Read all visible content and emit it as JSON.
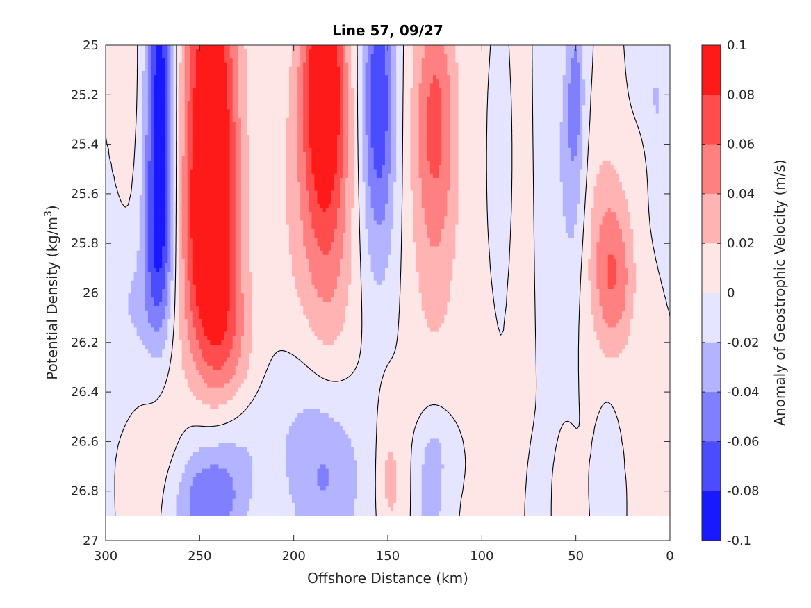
{
  "chart_data": {
    "type": "heatmap",
    "subtype": "filled-contour",
    "title": "Line 57, 09/27",
    "xlabel": "Offshore Distance (km)",
    "ylabel_main": "Potential Density (kg/m",
    "ylabel_sup": "3",
    "ylabel_close": ")",
    "colorbar_label": "Anomaly of Geostrophic Velocity (m/s)",
    "xlim": [
      300,
      0
    ],
    "ylim": [
      25,
      27
    ],
    "y_reversed": true,
    "x_ticks": [
      300,
      250,
      200,
      150,
      100,
      50,
      0
    ],
    "x_tick_labels": [
      "300",
      "250",
      "200",
      "150",
      "100",
      "50",
      "0"
    ],
    "y_ticks": [
      25,
      25.2,
      25.4,
      25.6,
      25.8,
      26,
      26.2,
      26.4,
      26.6,
      26.8,
      27
    ],
    "y_tick_labels": [
      "25",
      "25.2",
      "25.4",
      "25.6",
      "25.8",
      "26",
      "26.2",
      "26.4",
      "26.6",
      "26.8",
      "27"
    ],
    "colorbar_range": [
      -0.1,
      0.1
    ],
    "colorbar_ticks": [
      0.1,
      0.08,
      0.06,
      0.04,
      0.02,
      0,
      -0.02,
      -0.04,
      -0.06,
      -0.08,
      -0.1
    ],
    "colorbar_tick_labels": [
      "0.1",
      "0.08",
      "0.06",
      "0.04",
      "0.02",
      "0",
      "-0.02",
      "-0.04",
      "-0.06",
      "-0.08",
      "-0.1"
    ],
    "data_extent": {
      "x": [
        300,
        0
      ],
      "y": [
        25,
        26.9
      ]
    },
    "colormap": {
      "negative": "#0000ff",
      "zero": "#ffffff",
      "positive": "#ff0000"
    },
    "zero_contour_color": "#000000",
    "features": [
      {
        "x": 287,
        "y": 25.1,
        "sx": 3,
        "sy": 0.3,
        "v": 0.012
      },
      {
        "x": 271,
        "y": 25.2,
        "sx": 5,
        "sy": 0.5,
        "v": -0.092
      },
      {
        "x": 272,
        "y": 25.8,
        "sx": 6,
        "sy": 0.3,
        "v": -0.05
      },
      {
        "x": 285,
        "y": 26.05,
        "sx": 10,
        "sy": 0.16,
        "v": -0.02
      },
      {
        "x": 244,
        "y": 25.25,
        "sx": 10,
        "sy": 0.55,
        "v": 0.11
      },
      {
        "x": 244,
        "y": 25.9,
        "sx": 11,
        "sy": 0.35,
        "v": 0.065
      },
      {
        "x": 233,
        "y": 26.25,
        "sx": 10,
        "sy": 0.2,
        "v": 0.025
      },
      {
        "x": 268,
        "y": 26.55,
        "sx": 7,
        "sy": 0.25,
        "v": 0.014
      },
      {
        "x": 278,
        "y": 26.8,
        "sx": 5,
        "sy": 0.15,
        "v": 0.012
      },
      {
        "x": 184,
        "y": 25.1,
        "sx": 8,
        "sy": 0.35,
        "v": 0.1
      },
      {
        "x": 182,
        "y": 25.7,
        "sx": 10,
        "sy": 0.45,
        "v": 0.05
      },
      {
        "x": 200,
        "y": 25.6,
        "sx": 10,
        "sy": 0.5,
        "v": 0.015
      },
      {
        "x": 155,
        "y": 25.15,
        "sx": 6,
        "sy": 0.35,
        "v": -0.07
      },
      {
        "x": 155,
        "y": 25.65,
        "sx": 7,
        "sy": 0.35,
        "v": -0.025
      },
      {
        "x": 125,
        "y": 25.25,
        "sx": 8,
        "sy": 0.35,
        "v": 0.055
      },
      {
        "x": 125,
        "y": 25.8,
        "sx": 10,
        "sy": 0.45,
        "v": 0.025
      },
      {
        "x": 245,
        "y": 26.85,
        "sx": 13,
        "sy": 0.15,
        "v": -0.055
      },
      {
        "x": 235,
        "y": 26.6,
        "sx": 16,
        "sy": 0.18,
        "v": -0.022
      },
      {
        "x": 183,
        "y": 26.75,
        "sx": 14,
        "sy": 0.25,
        "v": -0.04
      },
      {
        "x": 195,
        "y": 26.45,
        "sx": 14,
        "sy": 0.25,
        "v": -0.012
      },
      {
        "x": 148,
        "y": 26.8,
        "sx": 5,
        "sy": 0.15,
        "v": 0.02
      },
      {
        "x": 150,
        "y": 26.6,
        "sx": 4,
        "sy": 0.2,
        "v": 0.012
      },
      {
        "x": 127,
        "y": 26.8,
        "sx": 5,
        "sy": 0.18,
        "v": -0.035
      },
      {
        "x": 122,
        "y": 26.62,
        "sx": 6,
        "sy": 0.12,
        "v": -0.012
      },
      {
        "x": 78,
        "y": 25.9,
        "sx": 3,
        "sy": 0.6,
        "v": 0.014
      },
      {
        "x": 90,
        "y": 25.5,
        "sx": 3,
        "sy": 0.2,
        "v": -0.012
      },
      {
        "x": 65,
        "y": 25.4,
        "sx": 4,
        "sy": 0.5,
        "v": -0.015
      },
      {
        "x": 52,
        "y": 25.45,
        "sx": 5,
        "sy": 0.35,
        "v": -0.035
      },
      {
        "x": 50,
        "y": 25.15,
        "sx": 3,
        "sy": 0.2,
        "v": -0.03
      },
      {
        "x": 30,
        "y": 25.95,
        "sx": 8,
        "sy": 0.22,
        "v": 0.052
      },
      {
        "x": 35,
        "y": 25.65,
        "sx": 8,
        "sy": 0.3,
        "v": 0.02
      },
      {
        "x": 15,
        "y": 25.45,
        "sx": 5,
        "sy": 0.15,
        "v": 0.012
      },
      {
        "x": 8,
        "y": 25.25,
        "sx": 7,
        "sy": 0.25,
        "v": -0.022
      },
      {
        "x": 72,
        "y": 26.85,
        "sx": 3,
        "sy": 0.15,
        "v": -0.015
      },
      {
        "x": 55,
        "y": 26.85,
        "sx": 3,
        "sy": 0.12,
        "v": 0.014
      },
      {
        "x": 33,
        "y": 26.62,
        "sx": 3,
        "sy": 0.12,
        "v": -0.014
      }
    ]
  }
}
